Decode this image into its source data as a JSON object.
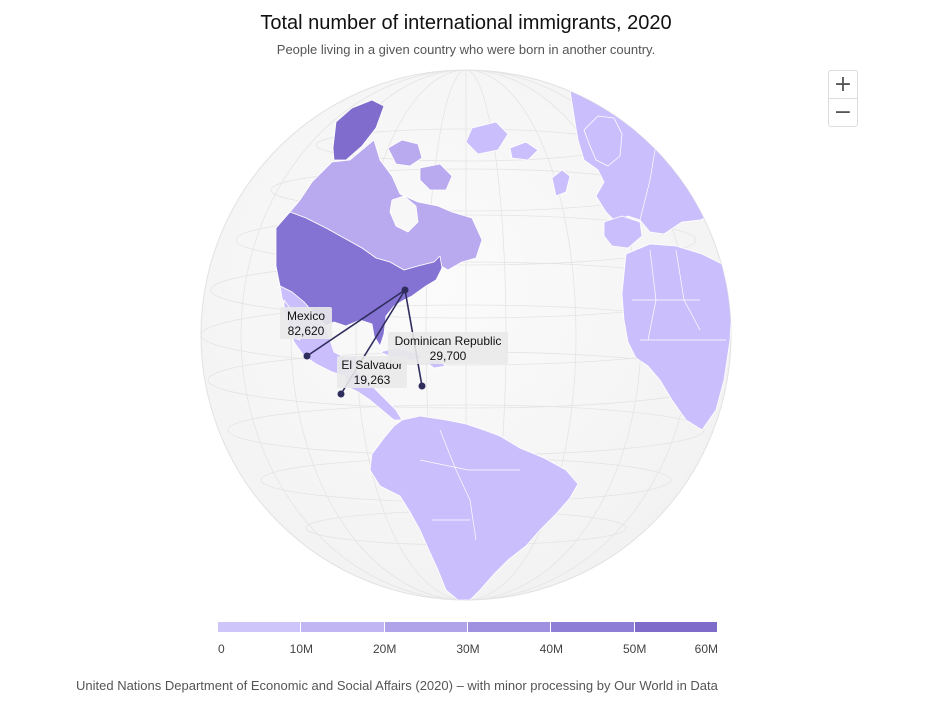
{
  "header": {
    "title": "Total number of international immigrants, 2020",
    "subtitle": "People living in a given country who were born in another country."
  },
  "zoom": {
    "in_label": "+",
    "out_label": "−"
  },
  "legend": {
    "ticks": [
      "0",
      "10M",
      "20M",
      "30M",
      "40M",
      "50M",
      "60M"
    ],
    "colors": [
      "#cec5fb",
      "#c1b5f4",
      "#b0a3ea",
      "#9f90e0",
      "#8f7ed5",
      "#7e6bca"
    ]
  },
  "map": {
    "projection": "orthographic globe",
    "centered_on": "North and South America",
    "selected_country": "United States",
    "flows": [
      {
        "country": "Mexico",
        "value": "82,620"
      },
      {
        "country": "El Salvador",
        "value": "19,263"
      },
      {
        "country": "Dominican Republic",
        "value": "29,700"
      }
    ],
    "colors": {
      "ocean": "#f7f7f7",
      "land_low": "#cbbefc",
      "land_mid": "#b9a9ef",
      "usa": "#8573d4",
      "greenland": "#7f6ccc",
      "flow_line": "#2f2d5e"
    }
  },
  "source": "United Nations Department of Economic and Social Affairs (2020) – with minor processing by Our World in Data"
}
